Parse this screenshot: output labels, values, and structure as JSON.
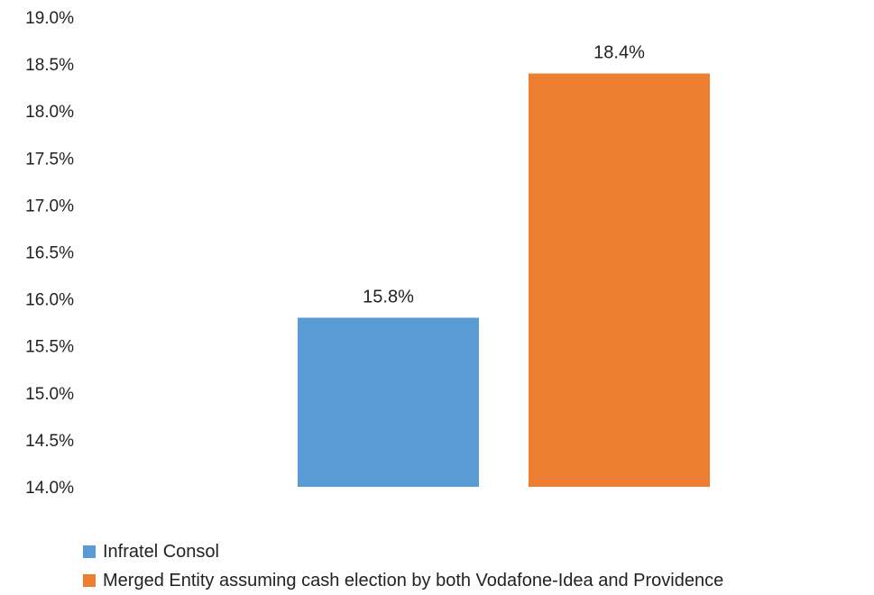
{
  "chart_data": {
    "type": "bar",
    "categories": [
      "Infratel Consol",
      "Merged Entity assuming cash election by both Vodafone-Idea and Providence"
    ],
    "values": [
      15.8,
      18.4
    ],
    "value_labels": [
      "15.8%",
      "18.4%"
    ],
    "colors": [
      "#5b9bd5",
      "#ed7d31"
    ],
    "ylim": [
      14.0,
      19.0
    ],
    "yticks": [
      14.0,
      14.5,
      15.0,
      15.5,
      16.0,
      16.5,
      17.0,
      17.5,
      18.0,
      18.5,
      19.0
    ],
    "ytick_labels": [
      "14.0%",
      "14.5%",
      "15.0%",
      "15.5%",
      "16.0%",
      "16.5%",
      "17.0%",
      "17.5%",
      "18.0%",
      "18.5%",
      "19.0%"
    ],
    "grid": false,
    "legend_position": "bottom"
  }
}
